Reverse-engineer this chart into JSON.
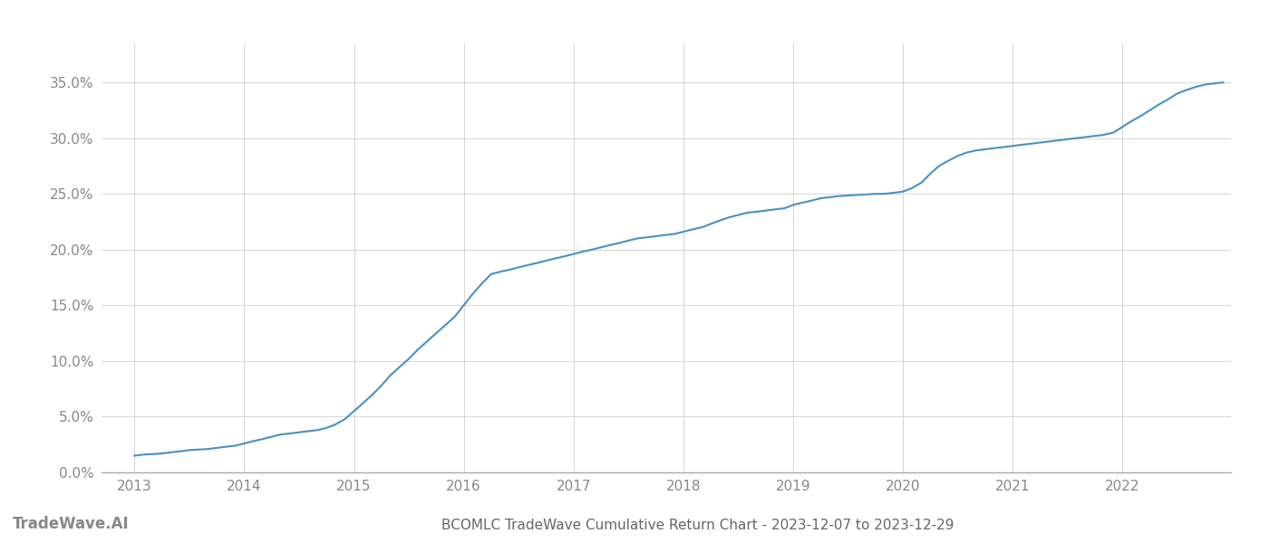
{
  "title": "BCOMLC TradeWave Cumulative Return Chart - 2023-12-07 to 2023-12-29",
  "watermark": "TradeWave.AI",
  "line_color": "#4a90c4",
  "background_color": "#ffffff",
  "x_data": [
    2013.0,
    2013.08,
    2013.17,
    2013.25,
    2013.33,
    2013.42,
    2013.5,
    2013.58,
    2013.67,
    2013.75,
    2013.83,
    2013.92,
    2014.0,
    2014.08,
    2014.17,
    2014.25,
    2014.33,
    2014.42,
    2014.5,
    2014.58,
    2014.67,
    2014.75,
    2014.83,
    2014.92,
    2015.0,
    2015.08,
    2015.17,
    2015.25,
    2015.33,
    2015.42,
    2015.5,
    2015.58,
    2015.67,
    2015.75,
    2015.83,
    2015.92,
    2016.0,
    2016.08,
    2016.17,
    2016.25,
    2016.33,
    2016.42,
    2016.5,
    2016.58,
    2016.67,
    2016.75,
    2016.83,
    2016.92,
    2017.0,
    2017.08,
    2017.17,
    2017.25,
    2017.33,
    2017.42,
    2017.5,
    2017.58,
    2017.67,
    2017.75,
    2017.83,
    2017.92,
    2018.0,
    2018.08,
    2018.17,
    2018.25,
    2018.33,
    2018.42,
    2018.5,
    2018.58,
    2018.67,
    2018.75,
    2018.83,
    2018.92,
    2019.0,
    2019.08,
    2019.17,
    2019.25,
    2019.33,
    2019.42,
    2019.5,
    2019.58,
    2019.67,
    2019.75,
    2019.83,
    2019.92,
    2020.0,
    2020.08,
    2020.17,
    2020.25,
    2020.33,
    2020.42,
    2020.5,
    2020.58,
    2020.67,
    2020.75,
    2020.83,
    2020.92,
    2021.0,
    2021.08,
    2021.17,
    2021.25,
    2021.33,
    2021.42,
    2021.5,
    2021.58,
    2021.67,
    2021.75,
    2021.83,
    2021.92,
    2022.0,
    2022.08,
    2022.17,
    2022.25,
    2022.33,
    2022.42,
    2022.5,
    2022.58,
    2022.67,
    2022.75,
    2022.83,
    2022.92
  ],
  "y_data": [
    1.5,
    1.6,
    1.65,
    1.7,
    1.8,
    1.9,
    2.0,
    2.05,
    2.1,
    2.2,
    2.3,
    2.4,
    2.6,
    2.8,
    3.0,
    3.2,
    3.4,
    3.5,
    3.6,
    3.7,
    3.8,
    4.0,
    4.3,
    4.8,
    5.5,
    6.2,
    7.0,
    7.8,
    8.7,
    9.5,
    10.2,
    11.0,
    11.8,
    12.5,
    13.2,
    14.0,
    15.0,
    16.0,
    17.0,
    17.8,
    18.0,
    18.2,
    18.4,
    18.6,
    18.8,
    19.0,
    19.2,
    19.4,
    19.6,
    19.8,
    20.0,
    20.2,
    20.4,
    20.6,
    20.8,
    21.0,
    21.1,
    21.2,
    21.3,
    21.4,
    21.6,
    21.8,
    22.0,
    22.3,
    22.6,
    22.9,
    23.1,
    23.3,
    23.4,
    23.5,
    23.6,
    23.7,
    24.0,
    24.2,
    24.4,
    24.6,
    24.7,
    24.8,
    24.85,
    24.9,
    24.95,
    25.0,
    25.0,
    25.1,
    25.2,
    25.5,
    26.0,
    26.8,
    27.5,
    28.0,
    28.4,
    28.7,
    28.9,
    29.0,
    29.1,
    29.2,
    29.3,
    29.4,
    29.5,
    29.6,
    29.7,
    29.8,
    29.9,
    30.0,
    30.1,
    30.2,
    30.3,
    30.5,
    31.0,
    31.5,
    32.0,
    32.5,
    33.0,
    33.5,
    34.0,
    34.3,
    34.6,
    34.8,
    34.9,
    35.0
  ],
  "ylim": [
    0.0,
    38.5
  ],
  "xlim": [
    2012.7,
    2022.99
  ],
  "yticks": [
    0.0,
    5.0,
    10.0,
    15.0,
    20.0,
    25.0,
    30.0,
    35.0
  ],
  "ytick_labels": [
    "0.0%",
    "5.0%",
    "10.0%",
    "15.0%",
    "20.0%",
    "25.0%",
    "30.0%",
    "35.0%"
  ],
  "xtick_labels": [
    "2013",
    "2014",
    "2015",
    "2016",
    "2017",
    "2018",
    "2019",
    "2020",
    "2021",
    "2022"
  ],
  "xtick_positions": [
    2013,
    2014,
    2015,
    2016,
    2017,
    2018,
    2019,
    2020,
    2021,
    2022
  ],
  "grid_color": "#cccccc",
  "grid_alpha": 0.8,
  "line_width": 1.5,
  "title_fontsize": 11,
  "tick_fontsize": 11,
  "watermark_fontsize": 12,
  "title_color": "#666666",
  "tick_color": "#888888",
  "watermark_color": "#888888"
}
